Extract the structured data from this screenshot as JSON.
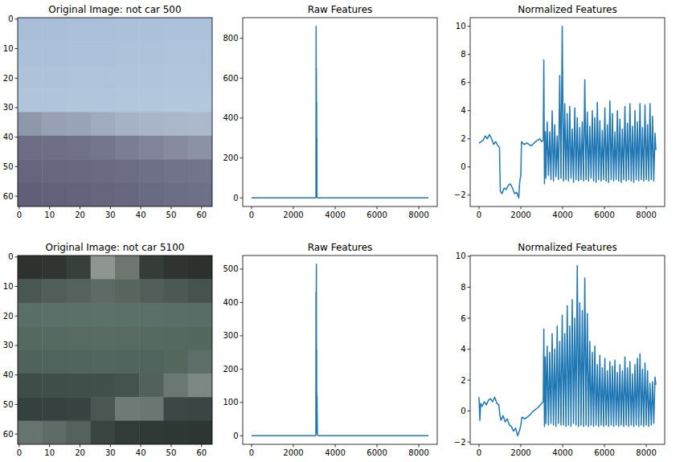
{
  "chart_data": [
    {
      "type": "image",
      "title": "Original Image: not car 500",
      "xlim": [
        -0.5,
        63.5
      ],
      "ylim": [
        63.5,
        -0.5
      ],
      "xticks": [
        0,
        10,
        20,
        30,
        40,
        50,
        60
      ],
      "yticks": [
        0,
        10,
        20,
        30,
        40,
        50,
        60
      ],
      "cells": [
        [
          "#a9bfd8",
          "#a9bfd8",
          "#aac0d8",
          "#aac0d9",
          "#abc1d9",
          "#abc1d9",
          "#acc2da",
          "#acc2da"
        ],
        [
          "#abc1d9",
          "#abc1d9",
          "#acc2d9",
          "#acc2da",
          "#adc3da",
          "#adc3da",
          "#aec4db",
          "#aec4db"
        ],
        [
          "#aec3da",
          "#aec3da",
          "#afc4da",
          "#afc4db",
          "#b0c5db",
          "#b0c5db",
          "#b1c6dc",
          "#b1c6dc"
        ],
        [
          "#b0c5db",
          "#b0c5db",
          "#b1c6db",
          "#b1c6dc",
          "#b2c7dc",
          "#b2c7dc",
          "#b3c8dd",
          "#b3c8dd"
        ],
        [
          "#8f97ab",
          "#97a0b4",
          "#9aa4b8",
          "#a0abc0",
          "#a5b1c5",
          "#a8b5c8",
          "#aab7ca",
          "#acb9cc"
        ],
        [
          "#6c6d85",
          "#6e6f87",
          "#707189",
          "#74768d",
          "#7a7d93",
          "#80849a",
          "#868ba0",
          "#8c92a6"
        ],
        [
          "#65657d",
          "#67677f",
          "#686981",
          "#6a6b83",
          "#6c6d85",
          "#6e7087",
          "#70738a",
          "#72768c"
        ],
        [
          "#5f6078",
          "#61627a",
          "#63647c",
          "#65667e",
          "#676880",
          "#696b82",
          "#6b6e85",
          "#6d7087"
        ]
      ]
    },
    {
      "type": "line",
      "title": "Raw Features",
      "color": "#1f77b4",
      "xlim": [
        -423,
        8882
      ],
      "ylim": [
        -43,
        903
      ],
      "xticks": [
        0,
        2000,
        4000,
        6000,
        8000
      ],
      "yticks": [
        0,
        200,
        400,
        600,
        800
      ],
      "x": [
        0,
        3060,
        3080,
        3088,
        3094,
        3100,
        3106,
        3112,
        3118,
        3124,
        3130,
        3140,
        3160,
        3200,
        8459
      ],
      "values": [
        0,
        0,
        3,
        860,
        40,
        650,
        15,
        480,
        10,
        300,
        5,
        2,
        0,
        0,
        0
      ]
    },
    {
      "type": "line",
      "title": "Normalized Features",
      "color": "#1f77b4",
      "xlim": [
        -423,
        8882
      ],
      "ylim": [
        -2.81,
        10.61
      ],
      "xticks": [
        0,
        2000,
        4000,
        6000,
        8000
      ],
      "yticks": [
        {
          "value": -2,
          "label": "−2"
        },
        0,
        2,
        4,
        6,
        8,
        10
      ],
      "x": [
        0,
        100,
        200,
        300,
        400,
        500,
        600,
        700,
        800,
        900,
        980,
        1000,
        1020,
        1100,
        1200,
        1300,
        1400,
        1500,
        1600,
        1700,
        1800,
        1900,
        1950,
        2000,
        2030,
        2150,
        2300,
        2500,
        2700,
        2900,
        3000,
        3072,
        3100,
        3130,
        3170,
        3200,
        3260,
        3320,
        3380,
        3440,
        3500,
        3560,
        3620,
        3680,
        3740,
        3800,
        3860,
        3920,
        3980,
        4040,
        4100,
        4160,
        4220,
        4280,
        4340,
        4400,
        4460,
        4520,
        4580,
        4640,
        4700,
        4760,
        4820,
        4880,
        4940,
        5000,
        5060,
        5120,
        5180,
        5240,
        5300,
        5360,
        5420,
        5480,
        5540,
        5600,
        5660,
        5720,
        5780,
        5840,
        5900,
        5960,
        6020,
        6080,
        6140,
        6200,
        6260,
        6320,
        6380,
        6440,
        6500,
        6560,
        6620,
        6680,
        6740,
        6800,
        6860,
        6920,
        6980,
        7040,
        7100,
        7160,
        7220,
        7280,
        7340,
        7400,
        7460,
        7520,
        7580,
        7640,
        7700,
        7760,
        7820,
        7880,
        7940,
        8000,
        8060,
        8120,
        8180,
        8240,
        8300,
        8360,
        8420,
        8459
      ],
      "values": [
        1.7,
        1.8,
        1.9,
        2.2,
        2.0,
        2.3,
        2.0,
        1.6,
        1.8,
        1.5,
        1.4,
        -0.4,
        -1.7,
        -1.9,
        -1.5,
        -1.6,
        -1.3,
        -1.2,
        -1.5,
        -1.9,
        -1.8,
        -2.2,
        -1.0,
        -0.6,
        1.8,
        1.6,
        1.7,
        1.5,
        1.8,
        2.0,
        1.8,
        1.9,
        7.6,
        -1.2,
        2.5,
        -0.8,
        3.2,
        -0.6,
        2.5,
        -0.9,
        4.0,
        -1.0,
        3.0,
        -0.7,
        2.2,
        -0.9,
        6.5,
        -0.8,
        10.0,
        -1.0,
        4.5,
        -0.9,
        3.8,
        -1.0,
        4.3,
        -0.8,
        2.7,
        -1.1,
        4.2,
        -0.9,
        3.5,
        -1.0,
        2.8,
        -0.9,
        3.2,
        -1.0,
        6.2,
        -0.9,
        3.9,
        -1.0,
        2.9,
        -0.8,
        4.0,
        -1.0,
        3.5,
        -1.1,
        4.6,
        -0.9,
        3.3,
        -1.0,
        2.6,
        -0.9,
        4.2,
        -1.0,
        3.0,
        -1.1,
        4.7,
        -0.9,
        3.8,
        -1.0,
        2.5,
        -0.9,
        4.0,
        -1.0,
        3.4,
        -1.1,
        2.7,
        -0.9,
        4.3,
        -1.0,
        3.1,
        -0.9,
        4.5,
        -1.0,
        2.9,
        -1.1,
        4.0,
        -0.9,
        3.2,
        -1.0,
        4.5,
        -0.9,
        2.8,
        -1.0,
        4.4,
        -0.9,
        3.0,
        -1.0,
        4.5,
        -0.9,
        3.6,
        -1.0,
        2.4,
        1.2
      ]
    },
    {
      "type": "image",
      "title": "Original Image: not car 5100",
      "xlim": [
        -0.5,
        63.5
      ],
      "ylim": [
        63.5,
        -0.5
      ],
      "xticks": [
        0,
        10,
        20,
        30,
        40,
        50,
        60
      ],
      "yticks": [
        0,
        10,
        20,
        30,
        40,
        50,
        60
      ],
      "cells": [
        [
          "#2d322f",
          "#303532",
          "#38403b",
          "#8d968f",
          "#6d766f",
          "#363c38",
          "#2f3431",
          "#2c312e"
        ],
        [
          "#4a5652",
          "#505d58",
          "#56625d",
          "#5e6a65",
          "#59655f",
          "#525e59",
          "#4c5853",
          "#46524d"
        ],
        [
          "#5a6e68",
          "#5b6f69",
          "#5c706a",
          "#5d716b",
          "#5c706a",
          "#5b6f69",
          "#5a6e68",
          "#596d67"
        ],
        [
          "#56695f",
          "#576a61",
          "#586b62",
          "#596c63",
          "#586b62",
          "#576a61",
          "#56695f",
          "#55685e"
        ],
        [
          "#4f625c",
          "#50635d",
          "#51645e",
          "#52655f",
          "#51645e",
          "#50635d",
          "#56675f",
          "#5e6e68"
        ],
        [
          "#3f4d49",
          "#404e4a",
          "#414f4b",
          "#42504c",
          "#45534f",
          "#53615c",
          "#6a7772",
          "#7c8884"
        ],
        [
          "#35413e",
          "#36423f",
          "#384441",
          "#4a5652",
          "#6e7a76",
          "#6a7672",
          "#3c4845",
          "#3a4643"
        ],
        [
          "#67736f",
          "#5f6b67",
          "#55615d",
          "#3a4542",
          "#313c39",
          "#2f3a37",
          "#2e3936",
          "#2e3633"
        ]
      ]
    },
    {
      "type": "line",
      "title": "Raw Features",
      "color": "#1f77b4",
      "xlim": [
        -423,
        8882
      ],
      "ylim": [
        -25.75,
        540.75
      ],
      "xticks": [
        0,
        2000,
        4000,
        6000,
        8000
      ],
      "yticks": [
        0,
        100,
        200,
        300,
        400,
        500
      ],
      "x": [
        0,
        3060,
        3076,
        3082,
        3088,
        3094,
        3100,
        3106,
        3112,
        3118,
        3130,
        3150,
        3200,
        8459
      ],
      "values": [
        0,
        0,
        5,
        430,
        20,
        370,
        515,
        30,
        260,
        8,
        120,
        2,
        0,
        0
      ]
    },
    {
      "type": "line",
      "title": "Normalized Features",
      "color": "#1f77b4",
      "xlim": [
        -423,
        8882
      ],
      "ylim": [
        -2.15,
        10.05
      ],
      "xticks": [
        0,
        2000,
        4000,
        6000,
        8000
      ],
      "yticks": [
        {
          "value": -2,
          "label": "−2"
        },
        0,
        2,
        4,
        6,
        8,
        10
      ],
      "x": [
        0,
        40,
        80,
        150,
        250,
        350,
        450,
        550,
        650,
        750,
        850,
        950,
        1000,
        1050,
        1150,
        1250,
        1350,
        1450,
        1550,
        1650,
        1750,
        1850,
        1950,
        2000,
        2050,
        2200,
        2400,
        2600,
        2800,
        3000,
        3072,
        3100,
        3130,
        3170,
        3200,
        3260,
        3320,
        3380,
        3440,
        3500,
        3560,
        3620,
        3680,
        3740,
        3800,
        3860,
        3920,
        3980,
        4040,
        4100,
        4160,
        4220,
        4280,
        4340,
        4400,
        4460,
        4520,
        4580,
        4640,
        4700,
        4760,
        4820,
        4880,
        4940,
        5000,
        5060,
        5120,
        5180,
        5240,
        5300,
        5360,
        5420,
        5480,
        5540,
        5600,
        5660,
        5720,
        5780,
        5840,
        5900,
        5960,
        6020,
        6080,
        6140,
        6200,
        6260,
        6320,
        6380,
        6440,
        6500,
        6560,
        6620,
        6680,
        6740,
        6800,
        6860,
        6920,
        6980,
        7040,
        7100,
        7160,
        7220,
        7280,
        7340,
        7400,
        7460,
        7520,
        7580,
        7640,
        7700,
        7760,
        7820,
        7880,
        7940,
        8000,
        8060,
        8120,
        8180,
        8240,
        8300,
        8360,
        8420,
        8459
      ],
      "values": [
        0.9,
        -0.6,
        0.5,
        0.3,
        0.6,
        0.4,
        0.7,
        0.8,
        0.6,
        0.9,
        0.5,
        0.4,
        -0.3,
        -0.6,
        -0.3,
        -0.7,
        -0.5,
        -0.9,
        -1.0,
        -1.3,
        -1.1,
        -1.6,
        -1.2,
        -0.9,
        -0.4,
        -0.5,
        -0.3,
        0.0,
        0.2,
        0.5,
        0.6,
        5.3,
        -1.0,
        3.5,
        -0.8,
        4.2,
        -0.9,
        3.8,
        -0.8,
        5.0,
        -0.9,
        4.0,
        -1.0,
        5.5,
        -0.8,
        4.5,
        -0.9,
        6.2,
        -0.9,
        5.0,
        -1.0,
        6.8,
        -0.9,
        5.5,
        -1.0,
        7.2,
        -0.8,
        6.0,
        -0.9,
        9.4,
        -1.0,
        7.0,
        -0.9,
        6.5,
        -1.0,
        8.6,
        -0.9,
        6.3,
        -1.0,
        4.5,
        -0.9,
        3.8,
        -1.0,
        4.2,
        -0.9,
        3.0,
        -1.0,
        3.6,
        -0.9,
        2.8,
        -1.0,
        3.4,
        -0.9,
        2.6,
        -1.0,
        3.2,
        -0.9,
        2.9,
        -1.0,
        3.3,
        -0.9,
        2.5,
        -1.0,
        3.0,
        -0.9,
        2.6,
        -1.0,
        3.5,
        -0.9,
        2.8,
        -1.0,
        3.2,
        -0.9,
        2.4,
        -1.0,
        3.0,
        -0.9,
        3.4,
        -1.0,
        3.7,
        -0.9,
        2.7,
        -1.0,
        3.1,
        -0.9,
        2.6,
        -1.0,
        1.8,
        -0.9,
        1.9,
        -0.8,
        2.2,
        1.7
      ]
    }
  ]
}
